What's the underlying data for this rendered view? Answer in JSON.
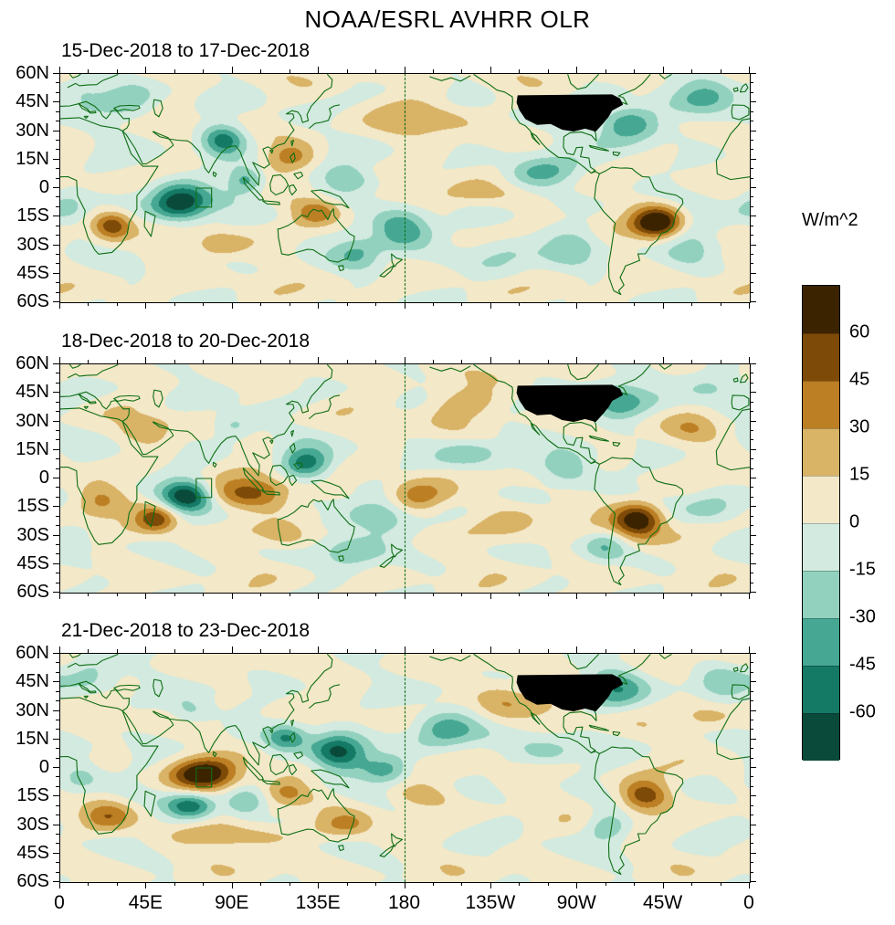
{
  "title": "NOAA/ESRL AVHRR OLR",
  "colorbar": {
    "label": "W/m^2",
    "tick_values": [
      60,
      45,
      30,
      15,
      0,
      -15,
      -30,
      -45,
      -60
    ],
    "colors_top_to_bottom": [
      "#3b2300",
      "#7e4a07",
      "#bc7f23",
      "#d9b366",
      "#f3e8c8",
      "#d2eae0",
      "#93d1bf",
      "#46a893",
      "#147a66",
      "#0a4a3a"
    ]
  },
  "axes": {
    "x_tick_labels": [
      "0",
      "45E",
      "90E",
      "135E",
      "180",
      "135W",
      "90W",
      "45W",
      "0"
    ],
    "y_tick_labels": [
      "60N",
      "45N",
      "30N",
      "15N",
      "0",
      "15S",
      "30S",
      "45S",
      "60S"
    ],
    "lon_range": [
      0,
      360
    ],
    "lat_range": [
      -60,
      60
    ]
  },
  "map_colors": {
    "coastline": "#0e6e14",
    "dateline_dash": "#0e6e14",
    "missing_data_region": "#000000",
    "frame": "#000000"
  },
  "chart_data": [
    {
      "type": "heatmap",
      "panel": 1,
      "title": "15-Dec-2018 to 17-Dec-2018",
      "units": "W/m^2",
      "texture_seed": 1.0,
      "anomaly_centers": [
        {
          "lon": 62,
          "lat": -8,
          "amp": -78,
          "sx": 11,
          "sy": 7
        },
        {
          "lon": 85,
          "lat": 25,
          "amp": -55,
          "sx": 8,
          "sy": 6
        },
        {
          "lon": 97,
          "lat": 4,
          "amp": -45,
          "sx": 7,
          "sy": 5
        },
        {
          "lon": 120,
          "lat": 17,
          "amp": 32,
          "sx": 9,
          "sy": 5
        },
        {
          "lon": 150,
          "lat": 4,
          "amp": -38,
          "sx": 10,
          "sy": 5
        },
        {
          "lon": 134,
          "lat": -13,
          "amp": 40,
          "sx": 9,
          "sy": 5
        },
        {
          "lon": 178,
          "lat": -21,
          "amp": -60,
          "sx": 11,
          "sy": 7
        },
        {
          "lon": 205,
          "lat": -4,
          "amp": 24,
          "sx": 16,
          "sy": 5
        },
        {
          "lon": 250,
          "lat": 8,
          "amp": -40,
          "sx": 13,
          "sy": 6
        },
        {
          "lon": 296,
          "lat": 33,
          "amp": -55,
          "sx": 11,
          "sy": 7
        },
        {
          "lon": 312,
          "lat": -18,
          "amp": 75,
          "sx": 9,
          "sy": 6
        },
        {
          "lon": 27,
          "lat": -20,
          "amp": 55,
          "sx": 7,
          "sy": 5
        },
        {
          "lon": 3,
          "lat": -9,
          "amp": -28,
          "sx": 8,
          "sy": 6
        },
        {
          "lon": 330,
          "lat": -30,
          "amp": -28,
          "sx": 11,
          "sy": 7
        },
        {
          "lon": 36,
          "lat": 45,
          "amp": -26,
          "sx": 11,
          "sy": 8
        },
        {
          "lon": 192,
          "lat": 38,
          "amp": 24,
          "sx": 14,
          "sy": 7
        },
        {
          "lon": 230,
          "lat": -36,
          "amp": -24,
          "sx": 12,
          "sy": 7
        },
        {
          "lon": 155,
          "lat": -34,
          "amp": -30,
          "sx": 9,
          "sy": 6
        },
        {
          "lon": 82,
          "lat": -30,
          "amp": 26,
          "sx": 9,
          "sy": 5
        },
        {
          "lon": 268,
          "lat": -30,
          "amp": -26,
          "sx": 10,
          "sy": 6
        },
        {
          "lon": 338,
          "lat": 48,
          "amp": -30,
          "sx": 12,
          "sy": 8
        },
        {
          "lon": 10,
          "lat": 52,
          "amp": -24,
          "sx": 9,
          "sy": 6
        }
      ]
    },
    {
      "type": "heatmap",
      "panel": 2,
      "title": "18-Dec-2018 to 20-Dec-2018",
      "units": "W/m^2",
      "texture_seed": 2.0,
      "anomaly_centers": [
        {
          "lon": 66,
          "lat": -9,
          "amp": -70,
          "sx": 9,
          "sy": 6
        },
        {
          "lon": 50,
          "lat": -21,
          "amp": 45,
          "sx": 7,
          "sy": 5
        },
        {
          "lon": 100,
          "lat": -8,
          "amp": 46,
          "sx": 15,
          "sy": 6
        },
        {
          "lon": 128,
          "lat": 8,
          "amp": -55,
          "sx": 9,
          "sy": 6
        },
        {
          "lon": 90,
          "lat": 27,
          "amp": -28,
          "sx": 8,
          "sy": 5
        },
        {
          "lon": 165,
          "lat": -20,
          "amp": -45,
          "sx": 13,
          "sy": 7
        },
        {
          "lon": 186,
          "lat": -10,
          "amp": 50,
          "sx": 11,
          "sy": 6
        },
        {
          "lon": 215,
          "lat": 12,
          "amp": -30,
          "sx": 13,
          "sy": 6
        },
        {
          "lon": 302,
          "lat": -22,
          "amp": 70,
          "sx": 9,
          "sy": 7
        },
        {
          "lon": 284,
          "lat": -36,
          "amp": -28,
          "sx": 8,
          "sy": 6
        },
        {
          "lon": 265,
          "lat": 5,
          "amp": -35,
          "sx": 10,
          "sy": 6
        },
        {
          "lon": 290,
          "lat": 40,
          "amp": -45,
          "sx": 11,
          "sy": 7
        },
        {
          "lon": 20,
          "lat": -12,
          "amp": 30,
          "sx": 9,
          "sy": 6
        },
        {
          "lon": 340,
          "lat": -15,
          "amp": -24,
          "sx": 10,
          "sy": 6
        },
        {
          "lon": 210,
          "lat": 40,
          "amp": 24,
          "sx": 14,
          "sy": 7
        },
        {
          "lon": 152,
          "lat": -40,
          "amp": -30,
          "sx": 11,
          "sy": 6
        },
        {
          "lon": 46,
          "lat": 25,
          "amp": 20,
          "sx": 10,
          "sy": 6
        },
        {
          "lon": 236,
          "lat": -25,
          "amp": 20,
          "sx": 12,
          "sy": 7
        },
        {
          "lon": 118,
          "lat": -30,
          "amp": 28,
          "sx": 10,
          "sy": 5
        },
        {
          "lon": 340,
          "lat": 50,
          "amp": -25,
          "sx": 11,
          "sy": 7
        },
        {
          "lon": 330,
          "lat": 28,
          "amp": 20,
          "sx": 10,
          "sy": 6
        }
      ]
    },
    {
      "type": "heatmap",
      "panel": 3,
      "title": "21-Dec-2018 to 23-Dec-2018",
      "units": "W/m^2",
      "texture_seed": 3.0,
      "anomaly_centers": [
        {
          "lon": 75,
          "lat": -4,
          "amp": 72,
          "sx": 12,
          "sy": 6
        },
        {
          "lon": 68,
          "lat": -20,
          "amp": -55,
          "sx": 9,
          "sy": 5
        },
        {
          "lon": 96,
          "lat": -19,
          "amp": -32,
          "sx": 7,
          "sy": 5
        },
        {
          "lon": 145,
          "lat": 8,
          "amp": -70,
          "sx": 10,
          "sy": 7
        },
        {
          "lon": 118,
          "lat": 16,
          "amp": -40,
          "sx": 7,
          "sy": 5
        },
        {
          "lon": 170,
          "lat": -2,
          "amp": -36,
          "sx": 9,
          "sy": 5
        },
        {
          "lon": 200,
          "lat": 20,
          "amp": -46,
          "sx": 12,
          "sy": 7
        },
        {
          "lon": 230,
          "lat": 35,
          "amp": 30,
          "sx": 11,
          "sy": 6
        },
        {
          "lon": 188,
          "lat": -15,
          "amp": 24,
          "sx": 12,
          "sy": 5
        },
        {
          "lon": 305,
          "lat": -15,
          "amp": 55,
          "sx": 9,
          "sy": 6
        },
        {
          "lon": 286,
          "lat": -31,
          "amp": -30,
          "sx": 8,
          "sy": 6
        },
        {
          "lon": 25,
          "lat": -25,
          "amp": 30,
          "sx": 9,
          "sy": 5
        },
        {
          "lon": 10,
          "lat": -4,
          "amp": -30,
          "sx": 8,
          "sy": 6
        },
        {
          "lon": 95,
          "lat": -36,
          "amp": 34,
          "sx": 18,
          "sy": 4
        },
        {
          "lon": 150,
          "lat": -30,
          "amp": 24,
          "sx": 9,
          "sy": 5
        },
        {
          "lon": 290,
          "lat": 42,
          "amp": -40,
          "sx": 11,
          "sy": 7
        },
        {
          "lon": 338,
          "lat": 27,
          "amp": 22,
          "sx": 10,
          "sy": 6
        },
        {
          "lon": 118,
          "lat": -13,
          "amp": 30,
          "sx": 8,
          "sy": 5
        },
        {
          "lon": 255,
          "lat": 8,
          "amp": -24,
          "sx": 11,
          "sy": 5
        },
        {
          "lon": 68,
          "lat": 30,
          "amp": -26,
          "sx": 8,
          "sy": 5
        },
        {
          "lon": 15,
          "lat": 50,
          "amp": -28,
          "sx": 10,
          "sy": 7
        },
        {
          "lon": 345,
          "lat": 45,
          "amp": -25,
          "sx": 10,
          "sy": 7
        }
      ]
    }
  ]
}
